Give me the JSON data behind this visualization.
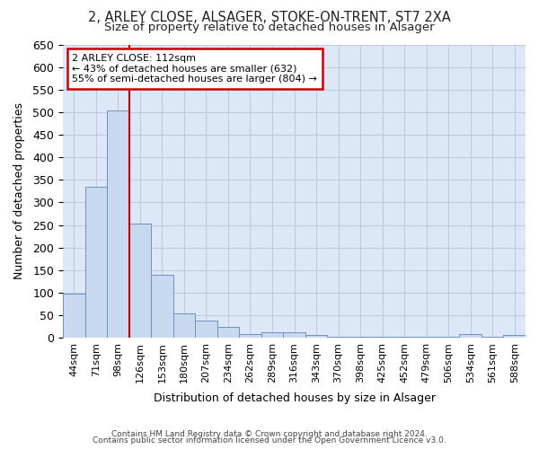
{
  "title_line1": "2, ARLEY CLOSE, ALSAGER, STOKE-ON-TRENT, ST7 2XA",
  "title_line2": "Size of property relative to detached houses in Alsager",
  "xlabel": "Distribution of detached houses by size in Alsager",
  "ylabel": "Number of detached properties",
  "categories": [
    "44sqm",
    "71sqm",
    "98sqm",
    "126sqm",
    "153sqm",
    "180sqm",
    "207sqm",
    "234sqm",
    "262sqm",
    "289sqm",
    "316sqm",
    "343sqm",
    "370sqm",
    "398sqm",
    "425sqm",
    "452sqm",
    "479sqm",
    "506sqm",
    "534sqm",
    "561sqm",
    "588sqm"
  ],
  "values": [
    98,
    335,
    505,
    254,
    140,
    53,
    38,
    23,
    7,
    11,
    11,
    5,
    1,
    1,
    1,
    1,
    1,
    1,
    7,
    1,
    6
  ],
  "bar_color": "#c8d8ee",
  "bar_edge_color": "#7090c0",
  "bar_width": 1.0,
  "vline_x_index": 2,
  "vline_color": "#cc0000",
  "annotation_title": "2 ARLEY CLOSE: 112sqm",
  "annotation_line2": "← 43% of detached houses are smaller (632)",
  "annotation_line3": "55% of semi-detached houses are larger (804) →",
  "annotation_box_facecolor": "#ffffff",
  "annotation_box_edgecolor": "#cc0000",
  "ylim": [
    0,
    650
  ],
  "yticks": [
    0,
    50,
    100,
    150,
    200,
    250,
    300,
    350,
    400,
    450,
    500,
    550,
    600,
    650
  ],
  "grid_color": "#c0ccdc",
  "bg_color": "#dce8f8",
  "plot_bg_color": "#dce8f8",
  "footer_line1": "Contains HM Land Registry data © Crown copyright and database right 2024.",
  "footer_line2": "Contains public sector information licensed under the Open Government Licence v3.0."
}
